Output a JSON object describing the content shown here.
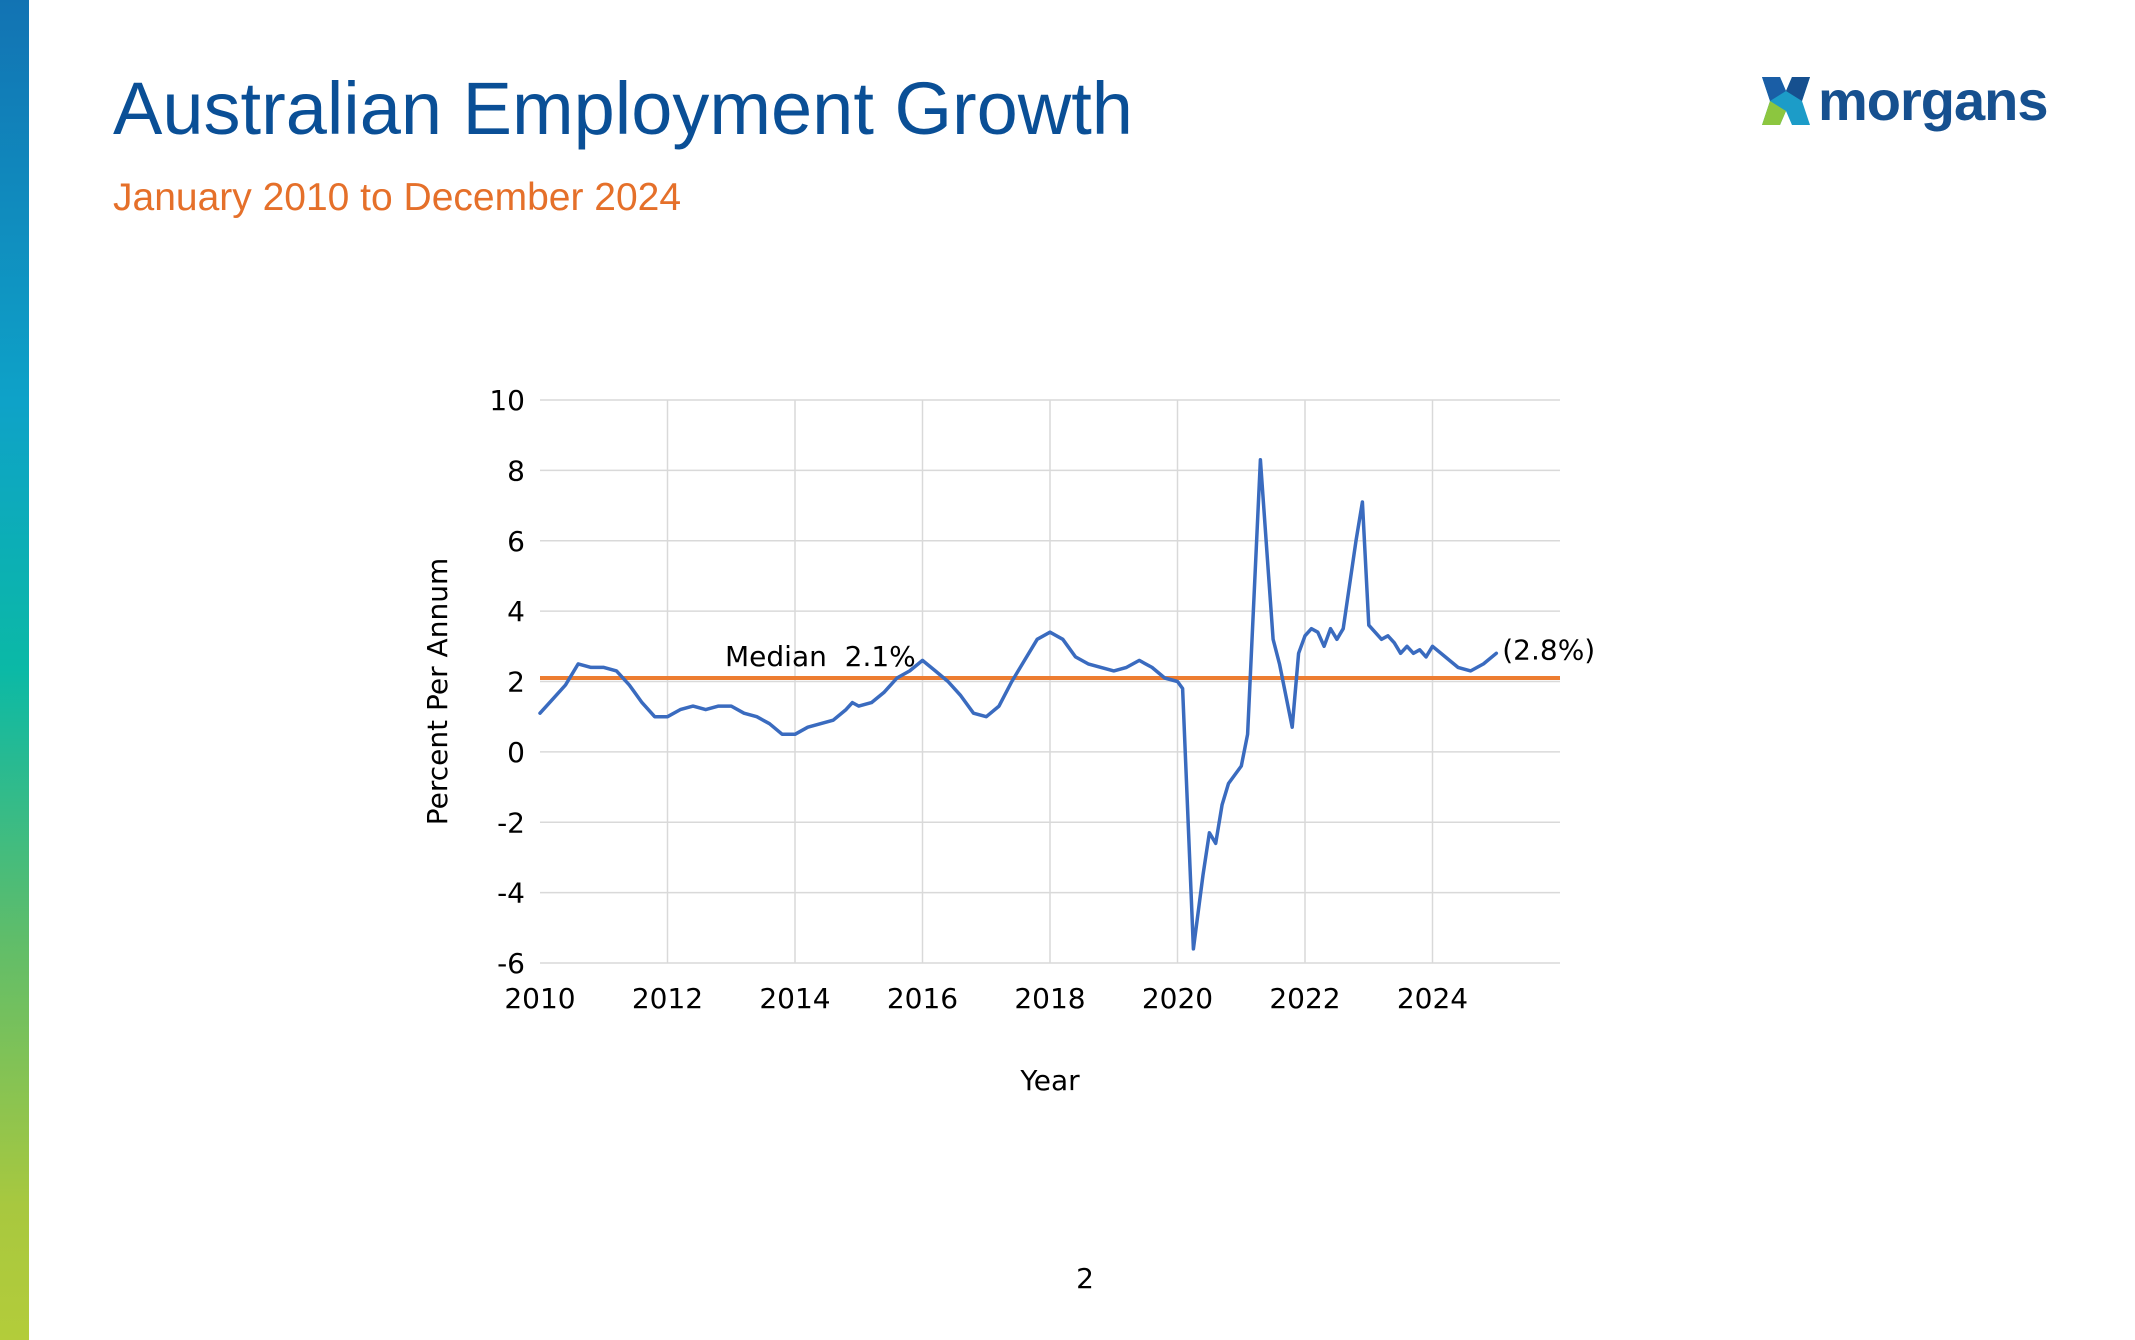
{
  "slide": {
    "title": "Australian Employment Growth",
    "subtitle": "January 2010 to December 2024",
    "logo_text": "morgans",
    "page_number": "2"
  },
  "colors": {
    "title": "#0a4f96",
    "subtitle": "#e5702a",
    "series": "#3a6bbf",
    "median": "#ed7d31",
    "grid": "#d9d9d9"
  },
  "chart_data": {
    "type": "line",
    "title": "",
    "xlabel": "Year",
    "ylabel": "Percent Per Annum",
    "xlim": [
      2010,
      2026
    ],
    "ylim": [
      -6,
      10
    ],
    "x_ticks": [
      2010,
      2012,
      2014,
      2016,
      2018,
      2020,
      2022,
      2024
    ],
    "y_ticks": [
      -6,
      -4,
      -2,
      0,
      2,
      4,
      6,
      8,
      10
    ],
    "grid": true,
    "series": [
      {
        "name": "",
        "color": "#3a6bbf",
        "x": [
          2010.0,
          2010.2,
          2010.4,
          2010.6,
          2010.8,
          2010.9,
          2011.0,
          2011.2,
          2011.4,
          2011.6,
          2011.8,
          2012.0,
          2012.2,
          2012.4,
          2012.6,
          2012.8,
          2013.0,
          2013.2,
          2013.4,
          2013.6,
          2013.8,
          2014.0,
          2014.2,
          2014.4,
          2014.6,
          2014.8,
          2014.9,
          2015.0,
          2015.2,
          2015.4,
          2015.6,
          2015.8,
          2016.0,
          2016.2,
          2016.4,
          2016.6,
          2016.8,
          2017.0,
          2017.2,
          2017.4,
          2017.6,
          2017.8,
          2018.0,
          2018.2,
          2018.4,
          2018.6,
          2018.8,
          2019.0,
          2019.2,
          2019.4,
          2019.6,
          2019.8,
          2020.0,
          2020.08,
          2020.25,
          2020.4,
          2020.5,
          2020.6,
          2020.7,
          2020.8,
          2021.0,
          2021.1,
          2021.3,
          2021.5,
          2021.6,
          2021.8,
          2021.9,
          2022.0,
          2022.1,
          2022.2,
          2022.3,
          2022.4,
          2022.5,
          2022.6,
          2022.8,
          2022.9,
          2023.0,
          2023.1,
          2023.2,
          2023.3,
          2023.4,
          2023.5,
          2023.6,
          2023.7,
          2023.8,
          2023.9,
          2024.0,
          2024.2,
          2024.4,
          2024.6,
          2024.8,
          2025.0
        ],
        "values": [
          1.1,
          1.5,
          1.9,
          2.5,
          2.4,
          2.4,
          2.4,
          2.3,
          1.9,
          1.4,
          1.0,
          1.0,
          1.2,
          1.3,
          1.2,
          1.3,
          1.3,
          1.1,
          1.0,
          0.8,
          0.5,
          0.5,
          0.7,
          0.8,
          0.9,
          1.2,
          1.4,
          1.3,
          1.4,
          1.7,
          2.1,
          2.3,
          2.6,
          2.3,
          2.0,
          1.6,
          1.1,
          1.0,
          1.3,
          2.0,
          2.6,
          3.2,
          3.4,
          3.2,
          2.7,
          2.5,
          2.4,
          2.3,
          2.4,
          2.6,
          2.4,
          2.1,
          2.0,
          1.8,
          -5.6,
          -3.5,
          -2.3,
          -2.6,
          -1.5,
          -0.9,
          -0.4,
          0.5,
          8.3,
          3.2,
          2.5,
          0.7,
          2.8,
          3.3,
          3.5,
          3.4,
          3.0,
          3.5,
          3.2,
          3.5,
          6.0,
          7.1,
          3.6,
          3.4,
          3.2,
          3.3,
          3.1,
          2.8,
          3.0,
          2.8,
          2.9,
          2.7,
          3.0,
          2.7,
          2.4,
          2.3,
          2.5,
          2.8
        ]
      }
    ],
    "median": {
      "value": 2.1,
      "label": "Median  2.1%",
      "color": "#ed7d31"
    },
    "end_label": "(2.8%)"
  }
}
